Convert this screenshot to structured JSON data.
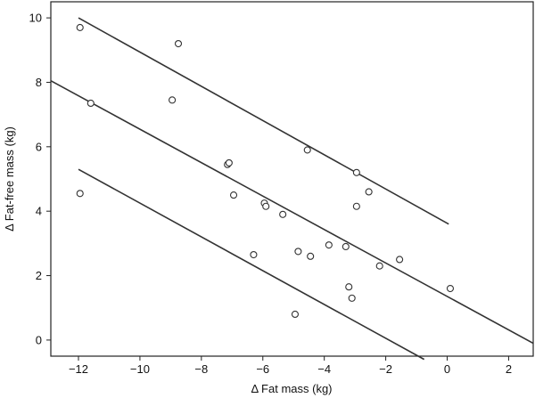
{
  "chart_data": {
    "type": "scatter",
    "title": "",
    "xlabel": "Δ Fat mass (kg)",
    "ylabel": "Δ Fat-free mass (kg)",
    "xlim": [
      -12.9,
      2.8
    ],
    "ylim": [
      -0.5,
      10.5
    ],
    "x_ticks": [
      -12,
      -10,
      -8,
      -6,
      -4,
      -2,
      0,
      2
    ],
    "y_ticks": [
      0,
      2,
      4,
      6,
      8,
      10
    ],
    "x_tick_labels": [
      "−12",
      "−10",
      "−8",
      "−6",
      "−4",
      "−2",
      "0",
      "2"
    ],
    "y_tick_labels": [
      "0",
      "2",
      "4",
      "6",
      "8",
      "10"
    ],
    "grid": false,
    "legend": "none",
    "points": [
      {
        "x": -11.95,
        "y": 9.7
      },
      {
        "x": -8.75,
        "y": 9.2
      },
      {
        "x": -11.6,
        "y": 7.35
      },
      {
        "x": -8.95,
        "y": 7.45
      },
      {
        "x": -7.15,
        "y": 5.45
      },
      {
        "x": -7.1,
        "y": 5.5
      },
      {
        "x": -4.55,
        "y": 5.9
      },
      {
        "x": -2.95,
        "y": 5.2
      },
      {
        "x": -11.95,
        "y": 4.55
      },
      {
        "x": -6.95,
        "y": 4.5
      },
      {
        "x": -5.95,
        "y": 4.25
      },
      {
        "x": -5.9,
        "y": 4.15
      },
      {
        "x": -5.35,
        "y": 3.9
      },
      {
        "x": -2.55,
        "y": 4.6
      },
      {
        "x": -2.95,
        "y": 4.15
      },
      {
        "x": -3.85,
        "y": 2.95
      },
      {
        "x": -3.3,
        "y": 2.9
      },
      {
        "x": -6.3,
        "y": 2.65
      },
      {
        "x": -4.85,
        "y": 2.75
      },
      {
        "x": -4.45,
        "y": 2.6
      },
      {
        "x": -2.2,
        "y": 2.3
      },
      {
        "x": -1.55,
        "y": 2.5
      },
      {
        "x": -3.2,
        "y": 1.65
      },
      {
        "x": -3.1,
        "y": 1.3
      },
      {
        "x": 0.1,
        "y": 1.6
      },
      {
        "x": -4.95,
        "y": 0.8
      }
    ],
    "lines": [
      {
        "x": [
          -12.0,
          0.05
        ],
        "y": [
          10.0,
          3.6
        ]
      },
      {
        "x": [
          -12.9,
          2.8
        ],
        "y": [
          8.05,
          -0.1
        ]
      },
      {
        "x": [
          -12.0,
          -0.75
        ],
        "y": [
          5.3,
          -0.6
        ]
      }
    ]
  }
}
